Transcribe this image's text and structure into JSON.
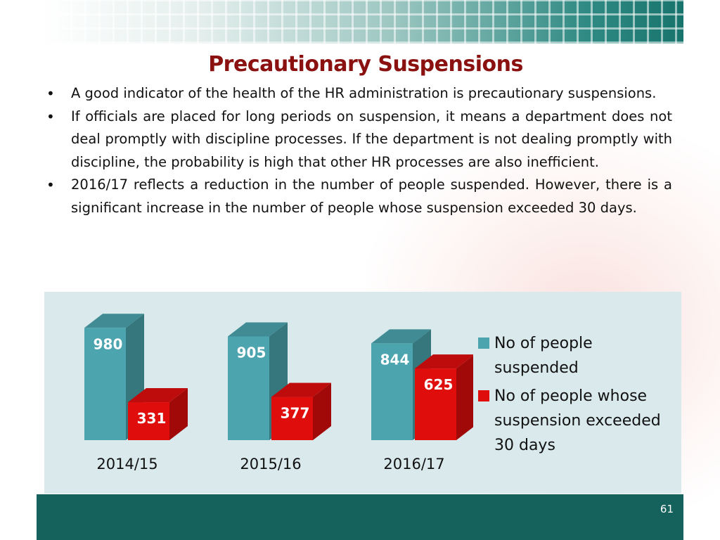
{
  "slide": {
    "title": "Precautionary Suspensions",
    "bullets": [
      "A good indicator of the health of the HR administration is precautionary suspensions.",
      "If officials are placed for long periods on suspension, it means a department does not deal promptly with discipline processes. If the department is not dealing promptly with discipline, the probability is high that other HR  processes are also inefficient.",
      "2016/17 reflects a reduction in the number of people suspended. However, there is a significant increase in the number of people whose suspension exceeded 30 days."
    ],
    "page_number": "61"
  },
  "chart_data": {
    "type": "bar",
    "style": "3d-clustered-column",
    "categories": [
      "2014/15",
      "2015/16",
      "2016/17"
    ],
    "series": [
      {
        "name": "No of people suspended",
        "values": [
          980,
          905,
          844
        ],
        "color": "#4ba4ae"
      },
      {
        "name": "No of people whose suspension exceeded 30 days",
        "values": [
          331,
          377,
          625
        ],
        "color": "#e00d0d"
      }
    ],
    "ylim": [
      0,
      1000
    ],
    "grid": false,
    "data_labels": true,
    "legend_position": "right"
  }
}
